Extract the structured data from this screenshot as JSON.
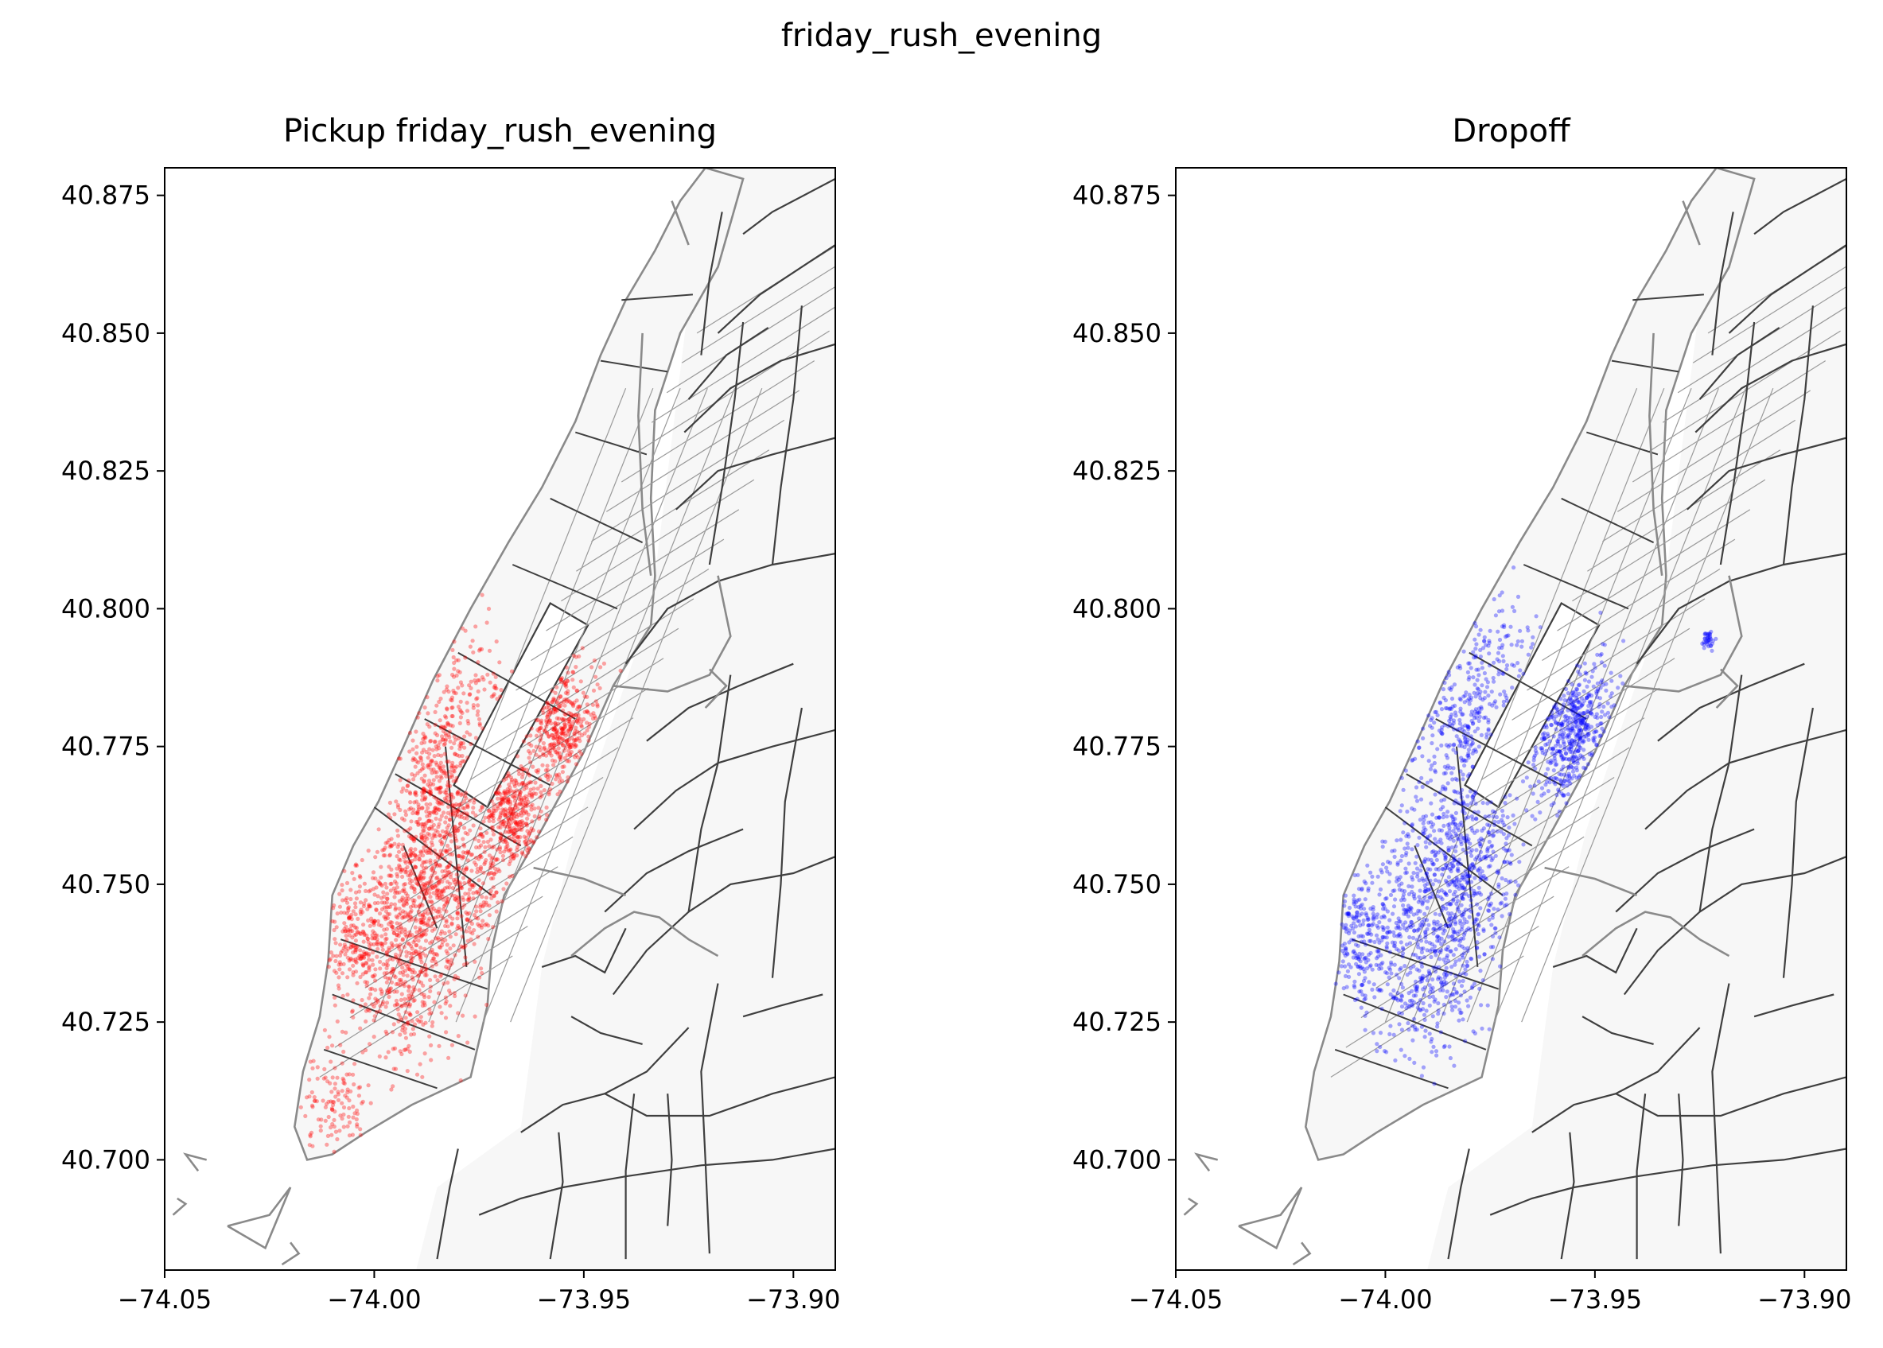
{
  "suptitle": "friday_rush_evening",
  "colors": {
    "map_fill": "#f7f7f7",
    "boundary_dark": "#3f3f3f",
    "boundary_light": "#8a8a8a",
    "pickup": "#ff0000",
    "dropoff": "#0000ff"
  },
  "chart_data": [
    {
      "type": "scatter",
      "title": "Pickup friday_rush_evening",
      "series": [
        {
          "color": "#ff0000"
        }
      ],
      "xlim": [
        -74.05,
        -73.89
      ],
      "ylim": [
        40.68,
        40.88
      ],
      "xticks": [
        -74.05,
        -74.0,
        -73.95,
        -73.9
      ],
      "xtick_labels": [
        "−74.05",
        "−74.00",
        "−73.95",
        "−73.90"
      ],
      "yticks": [
        40.7,
        40.725,
        40.75,
        40.775,
        40.8,
        40.825,
        40.85,
        40.875
      ],
      "ytick_labels": [
        "40.700",
        "40.725",
        "40.750",
        "40.775",
        "40.800",
        "40.825",
        "40.850",
        "40.875"
      ],
      "hotspots": [
        {
          "x": -73.955,
          "y": 40.779,
          "spread": 0.0045,
          "weight": 3
        },
        {
          "x": -73.967,
          "y": 40.763,
          "spread": 0.004,
          "weight": 3
        },
        {
          "x": -73.985,
          "y": 40.757,
          "spread": 0.006,
          "weight": 3
        },
        {
          "x": -73.99,
          "y": 40.748,
          "spread": 0.006,
          "weight": 3
        },
        {
          "x": -73.992,
          "y": 40.733,
          "spread": 0.006,
          "weight": 3
        },
        {
          "x": -73.983,
          "y": 40.77,
          "spread": 0.005,
          "weight": 2
        },
        {
          "x": -73.98,
          "y": 40.785,
          "spread": 0.006,
          "weight": 1
        },
        {
          "x": -74.005,
          "y": 40.74,
          "spread": 0.005,
          "weight": 2
        },
        {
          "x": -74.01,
          "y": 40.71,
          "spread": 0.004,
          "weight": 1
        },
        {
          "x": -73.975,
          "y": 40.745,
          "spread": 0.005,
          "weight": 1
        }
      ]
    },
    {
      "type": "scatter",
      "title": "Dropoff",
      "series": [
        {
          "color": "#0000ff"
        }
      ],
      "xlim": [
        -74.05,
        -73.89
      ],
      "ylim": [
        40.68,
        40.88
      ],
      "xticks": [
        -74.05,
        -74.0,
        -73.95,
        -73.9
      ],
      "xtick_labels": [
        "−74.05",
        "−74.00",
        "−73.95",
        "−73.90"
      ],
      "yticks": [
        40.7,
        40.725,
        40.75,
        40.775,
        40.8,
        40.825,
        40.85,
        40.875
      ],
      "ytick_labels": [
        "40.700",
        "40.725",
        "40.750",
        "40.775",
        "40.800",
        "40.825",
        "40.850",
        "40.875"
      ],
      "hotspots": [
        {
          "x": -73.955,
          "y": 40.778,
          "spread": 0.006,
          "weight": 4
        },
        {
          "x": -73.988,
          "y": 40.75,
          "spread": 0.007,
          "weight": 3
        },
        {
          "x": -73.978,
          "y": 40.754,
          "spread": 0.006,
          "weight": 2
        },
        {
          "x": -73.99,
          "y": 40.735,
          "spread": 0.007,
          "weight": 3
        },
        {
          "x": -73.982,
          "y": 40.775,
          "spread": 0.006,
          "weight": 2
        },
        {
          "x": -73.975,
          "y": 40.79,
          "spread": 0.006,
          "weight": 1
        },
        {
          "x": -74.005,
          "y": 40.74,
          "spread": 0.005,
          "weight": 2
        },
        {
          "x": -73.923,
          "y": 40.794,
          "spread": 0.0006,
          "weight": 0.3
        }
      ]
    }
  ]
}
